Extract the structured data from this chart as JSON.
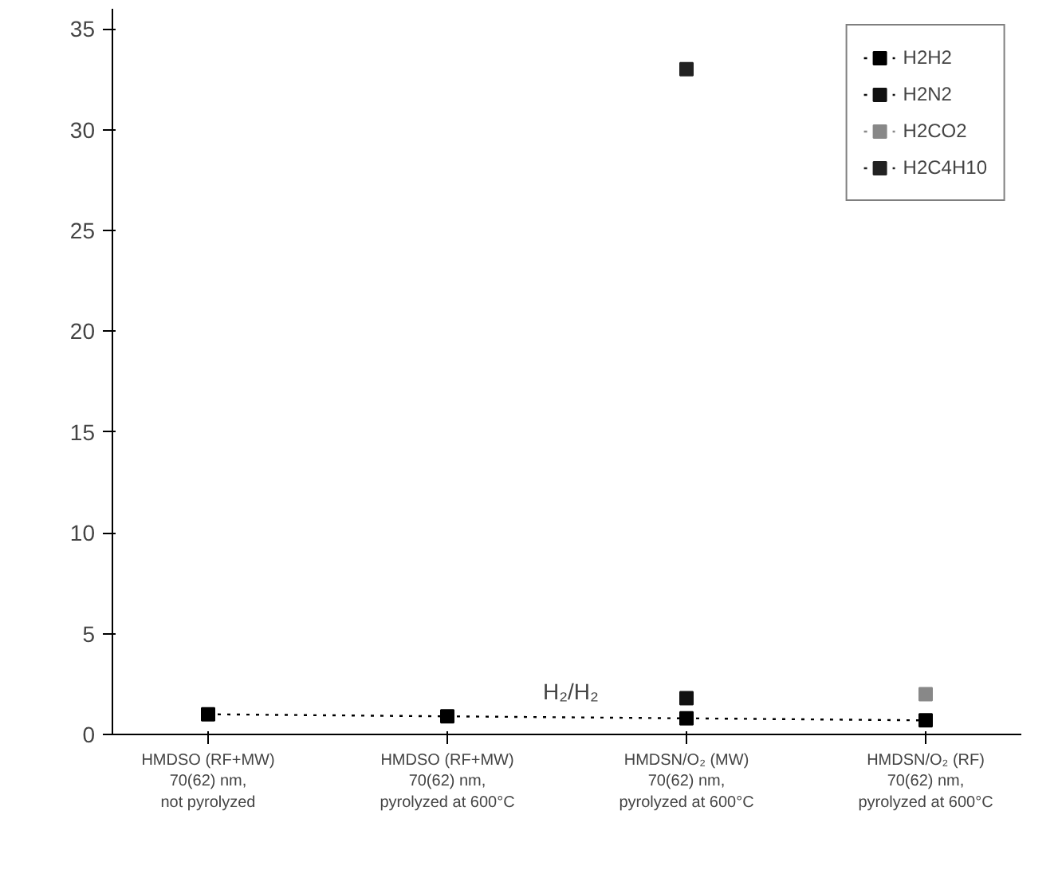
{
  "chart_data": {
    "type": "line",
    "categories": [
      "HMDSO (RF+MW)\n70(62) nm,\nnot pyrolyzed",
      "HMDSO (RF+MW)\n70(62) nm,\npyrolyzed at 600°C",
      "HMDSN/O₂ (MW)\n70(62) nm,\npyrolyzed at 600°C",
      "HMDSN/O₂ (RF)\n70(62) nm,\npyrolyzed at 600°C"
    ],
    "series": [
      {
        "name": "H2H2",
        "color": "#000000",
        "values": [
          1.0,
          0.9,
          0.8,
          0.7
        ]
      },
      {
        "name": "H2N2",
        "color": "#111111",
        "values": [
          null,
          null,
          1.8,
          null
        ]
      },
      {
        "name": "H2CO2",
        "color": "#888888",
        "values": [
          null,
          null,
          null,
          2.0
        ]
      },
      {
        "name": "H2C4H10",
        "color": "#222222",
        "values": [
          null,
          null,
          33,
          null
        ]
      }
    ],
    "ylim": [
      0,
      36
    ],
    "yticks": [
      0,
      5,
      10,
      15,
      20,
      25,
      30,
      35
    ],
    "annotations": [
      "H₂/H₂"
    ],
    "marker": "square",
    "line_style": "dotted",
    "grid": false,
    "legend": "top right"
  }
}
